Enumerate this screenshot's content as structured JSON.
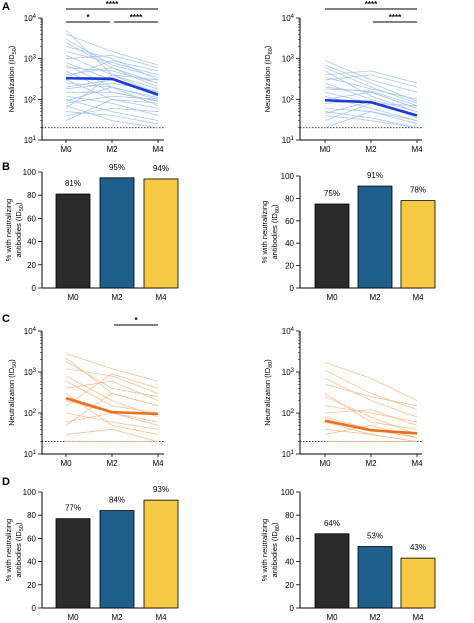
{
  "panel_letters": [
    "A",
    "B",
    "C",
    "D"
  ],
  "chart_data": [
    {
      "panel": "A",
      "type": "line",
      "ylabel": "Neutralization (ID50)",
      "ylabel_main": "Neutralization (ID",
      "ylabel_sub": "50",
      "ylabel_close": ")",
      "y_scale": "log",
      "ylim": [
        10,
        10000
      ],
      "categories": [
        "M0",
        "M2",
        "M4"
      ],
      "series_color": "#9ec2ea",
      "mean_color": "#1d39d6",
      "mean": [
        330,
        320,
        130
      ],
      "individual_lines": [
        [
          2500,
          600,
          250
        ],
        [
          5000,
          400,
          180
        ],
        [
          1500,
          800,
          400
        ],
        [
          700,
          200,
          100
        ],
        [
          300,
          100,
          60
        ],
        [
          100,
          50,
          30
        ],
        [
          50,
          40,
          25
        ],
        [
          200,
          300,
          150
        ],
        [
          1000,
          1200,
          600
        ],
        [
          60,
          400,
          300
        ],
        [
          30,
          100,
          80
        ],
        [
          400,
          600,
          200
        ],
        [
          800,
          300,
          120
        ],
        [
          150,
          150,
          90
        ],
        [
          2000,
          1000,
          300
        ],
        [
          120,
          80,
          40
        ],
        [
          600,
          500,
          250
        ],
        [
          90,
          200,
          70
        ],
        [
          3000,
          700,
          350
        ],
        [
          250,
          200,
          110
        ],
        [
          500,
          150,
          90
        ],
        [
          40,
          60,
          50
        ],
        [
          1200,
          400,
          140
        ],
        [
          180,
          250,
          160
        ],
        [
          70,
          30,
          20
        ],
        [
          350,
          900,
          500
        ],
        [
          4000,
          1500,
          700
        ],
        [
          80,
          120,
          100
        ]
      ],
      "detection_limit": 20,
      "significance": [
        {
          "from": 0,
          "to": 1,
          "label": "*"
        },
        {
          "from": 1,
          "to": 2,
          "label": "****"
        },
        {
          "from": 0,
          "to": 2,
          "label": "****"
        }
      ]
    },
    {
      "panel": "A",
      "type": "line",
      "ylabel": "Neutralization (ID80)",
      "ylabel_main": "Neutralization (ID",
      "ylabel_sub": "80",
      "ylabel_close": ")",
      "y_scale": "log",
      "ylim": [
        10,
        10000
      ],
      "categories": [
        "M0",
        "M2",
        "M4"
      ],
      "series_color": "#9ec2ea",
      "mean_color": "#1d39d6",
      "mean": [
        95,
        85,
        40
      ],
      "individual_lines": [
        [
          900,
          300,
          150
        ],
        [
          600,
          200,
          80
        ],
        [
          400,
          500,
          250
        ],
        [
          250,
          100,
          50
        ],
        [
          150,
          80,
          40
        ],
        [
          60,
          50,
          25
        ],
        [
          40,
          30,
          20
        ],
        [
          100,
          150,
          60
        ],
        [
          300,
          400,
          200
        ],
        [
          30,
          80,
          70
        ],
        [
          20,
          50,
          30
        ],
        [
          200,
          150,
          60
        ],
        [
          500,
          120,
          50
        ],
        [
          80,
          90,
          35
        ],
        [
          700,
          250,
          90
        ],
        [
          50,
          35,
          20
        ],
        [
          180,
          160,
          70
        ],
        [
          45,
          90,
          40
        ],
        [
          120,
          60,
          30
        ],
        [
          350,
          180,
          100
        ]
      ],
      "detection_limit": 20,
      "significance": [
        {
          "from": 1,
          "to": 2,
          "label": "****"
        },
        {
          "from": 0,
          "to": 2,
          "label": "****"
        }
      ]
    },
    {
      "panel": "B",
      "type": "bar",
      "ylabel": "% with neutralizing antibodies (ID50)",
      "ylabel_line1": "% with neutralizing",
      "ylabel_main": "antibodies (ID",
      "ylabel_sub": "50",
      "ylabel_close": ")",
      "ylim": [
        0,
        100
      ],
      "categories": [
        "M0",
        "M2",
        "M4"
      ],
      "values": [
        81,
        95,
        94
      ],
      "labels": [
        "81%",
        "95%",
        "94%"
      ],
      "colors": [
        "#2b2b2b",
        "#1f5f8b",
        "#f6c945"
      ]
    },
    {
      "panel": "B",
      "type": "bar",
      "ylabel": "% with neutralizing antibodies (ID80)",
      "ylabel_line1": "% with neutralizing",
      "ylabel_main": "antibodies (ID",
      "ylabel_sub": "80",
      "ylabel_close": ")",
      "ylim": [
        0,
        100
      ],
      "categories": [
        "M0",
        "M2",
        "M4"
      ],
      "values": [
        75,
        91,
        78
      ],
      "labels": [
        "75%",
        "91%",
        "78%"
      ],
      "colors": [
        "#2b2b2b",
        "#1f5f8b",
        "#f6c945"
      ]
    },
    {
      "panel": "C",
      "type": "line",
      "ylabel": "Neutralization (ID50)",
      "ylabel_main": "Neutralization (ID",
      "ylabel_sub": "50",
      "ylabel_close": ")",
      "y_scale": "log",
      "ylim": [
        10,
        10000
      ],
      "categories": [
        "M0",
        "M2",
        "M4"
      ],
      "series_color": "#f7b98a",
      "mean_color": "#e8701f",
      "mean": [
        230,
        105,
        95
      ],
      "individual_lines": [
        [
          2800,
          1200,
          600
        ],
        [
          1800,
          400,
          250
        ],
        [
          1200,
          800,
          300
        ],
        [
          600,
          150,
          100
        ],
        [
          400,
          600,
          200
        ],
        [
          200,
          100,
          60
        ],
        [
          100,
          60,
          40
        ],
        [
          50,
          300,
          150
        ],
        [
          30,
          40,
          20
        ],
        [
          800,
          200,
          80
        ],
        [
          150,
          900,
          400
        ],
        [
          2200,
          300,
          150
        ],
        [
          20,
          20,
          20
        ],
        [
          60,
          100,
          50
        ],
        [
          300,
          50,
          30
        ]
      ],
      "detection_limit": 20,
      "significance": [
        {
          "from": 1,
          "to": 2,
          "label": "*"
        }
      ]
    },
    {
      "panel": "C",
      "type": "line",
      "ylabel": "Neutralization (ID80)",
      "ylabel_main": "Neutralization (ID",
      "ylabel_sub": "80",
      "ylabel_close": ")",
      "y_scale": "log",
      "ylim": [
        10,
        10000
      ],
      "categories": [
        "M0",
        "M2",
        "M4"
      ],
      "series_color": "#f7b98a",
      "mean_color": "#e8701f",
      "mean": [
        65,
        38,
        32
      ],
      "individual_lines": [
        [
          1700,
          700,
          200
        ],
        [
          1100,
          300,
          120
        ],
        [
          500,
          250,
          150
        ],
        [
          300,
          60,
          40
        ],
        [
          150,
          100,
          60
        ],
        [
          80,
          40,
          25
        ],
        [
          40,
          30,
          20
        ],
        [
          20,
          20,
          20
        ],
        [
          250,
          80,
          30
        ],
        [
          100,
          120,
          50
        ],
        [
          60,
          30,
          20
        ],
        [
          700,
          200,
          80
        ],
        [
          30,
          50,
          25
        ]
      ],
      "detection_limit": 20,
      "significance": []
    },
    {
      "panel": "D",
      "type": "bar",
      "ylabel": "% with neutralizing antibodies (ID50)",
      "ylabel_line1": "% with neutralizing",
      "ylabel_main": "antibodies (ID",
      "ylabel_sub": "50",
      "ylabel_close": ")",
      "ylim": [
        0,
        100
      ],
      "categories": [
        "M0",
        "M2",
        "M4"
      ],
      "values": [
        77,
        84,
        93
      ],
      "labels": [
        "77%",
        "84%",
        "93%"
      ],
      "colors": [
        "#2b2b2b",
        "#1f5f8b",
        "#f6c945"
      ]
    },
    {
      "panel": "D",
      "type": "bar",
      "ylabel": "% with neutralizing antibodies (ID80)",
      "ylabel_line1": "% with neutralizing",
      "ylabel_main": "antibodies (ID",
      "ylabel_sub": "80",
      "ylabel_close": ")",
      "ylim": [
        0,
        100
      ],
      "categories": [
        "M0",
        "M2",
        "M4"
      ],
      "values": [
        64,
        53,
        43
      ],
      "labels": [
        "64%",
        "53%",
        "43%"
      ],
      "colors": [
        "#2b2b2b",
        "#1f5f8b",
        "#f6c945"
      ]
    }
  ]
}
